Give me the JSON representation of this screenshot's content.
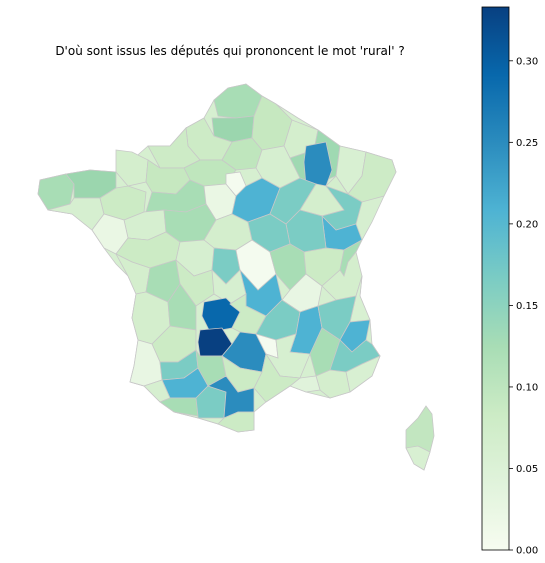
{
  "title": "D'où sont issus les députés qui prononcent le mot 'rural' ?",
  "colorbar": {
    "colormap": "GnBu",
    "min": 0.0,
    "max": 0.333,
    "ticks": [
      "0.00",
      "0.05",
      "0.10",
      "0.15",
      "0.20",
      "0.25",
      "0.30"
    ],
    "tick_values": [
      0.0,
      0.05,
      0.1,
      0.15,
      0.2,
      0.25,
      0.3
    ]
  },
  "colors": {
    "border": "#c8c8c8",
    "low": "#f7fcf0",
    "high": "#084081"
  }
}
